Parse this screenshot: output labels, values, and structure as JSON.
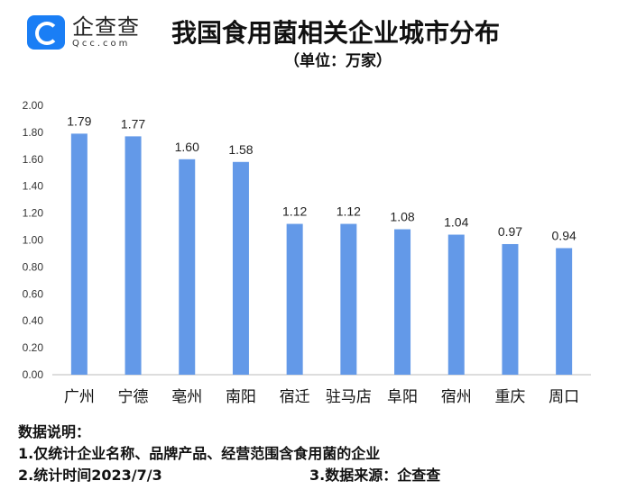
{
  "logo": {
    "cn": "企查查",
    "en": "Qcc.com"
  },
  "chart_data": {
    "type": "bar",
    "title": "我国食用菌相关企业城市分布",
    "subtitle": "（单位：万家）",
    "categories": [
      "广州",
      "宁德",
      "亳州",
      "南阳",
      "宿迁",
      "驻马店",
      "阜阳",
      "宿州",
      "重庆",
      "周口"
    ],
    "values": [
      1.79,
      1.77,
      1.6,
      1.58,
      1.12,
      1.12,
      1.08,
      1.04,
      0.97,
      0.94
    ],
    "data_labels": [
      "1.79",
      "1.77",
      "1.60",
      "1.58",
      "1.12",
      "1.12",
      "1.08",
      "1.04",
      "0.97",
      "0.94"
    ],
    "ylim": [
      0,
      2
    ],
    "yticks": [
      "0.00",
      "0.20",
      "0.40",
      "0.60",
      "0.80",
      "1.00",
      "1.20",
      "1.40",
      "1.60",
      "1.80",
      "2.00"
    ],
    "xlabel": "",
    "ylabel": "",
    "grid": false,
    "bar_color": "#6399e8"
  },
  "notes": {
    "heading": "数据说明：",
    "line1": "1.仅统计企业名称、品牌产品、经营范围含食用菌的企业",
    "line2": "2.统计时间2023/7/3",
    "line3": "3.数据来源：企查查"
  }
}
